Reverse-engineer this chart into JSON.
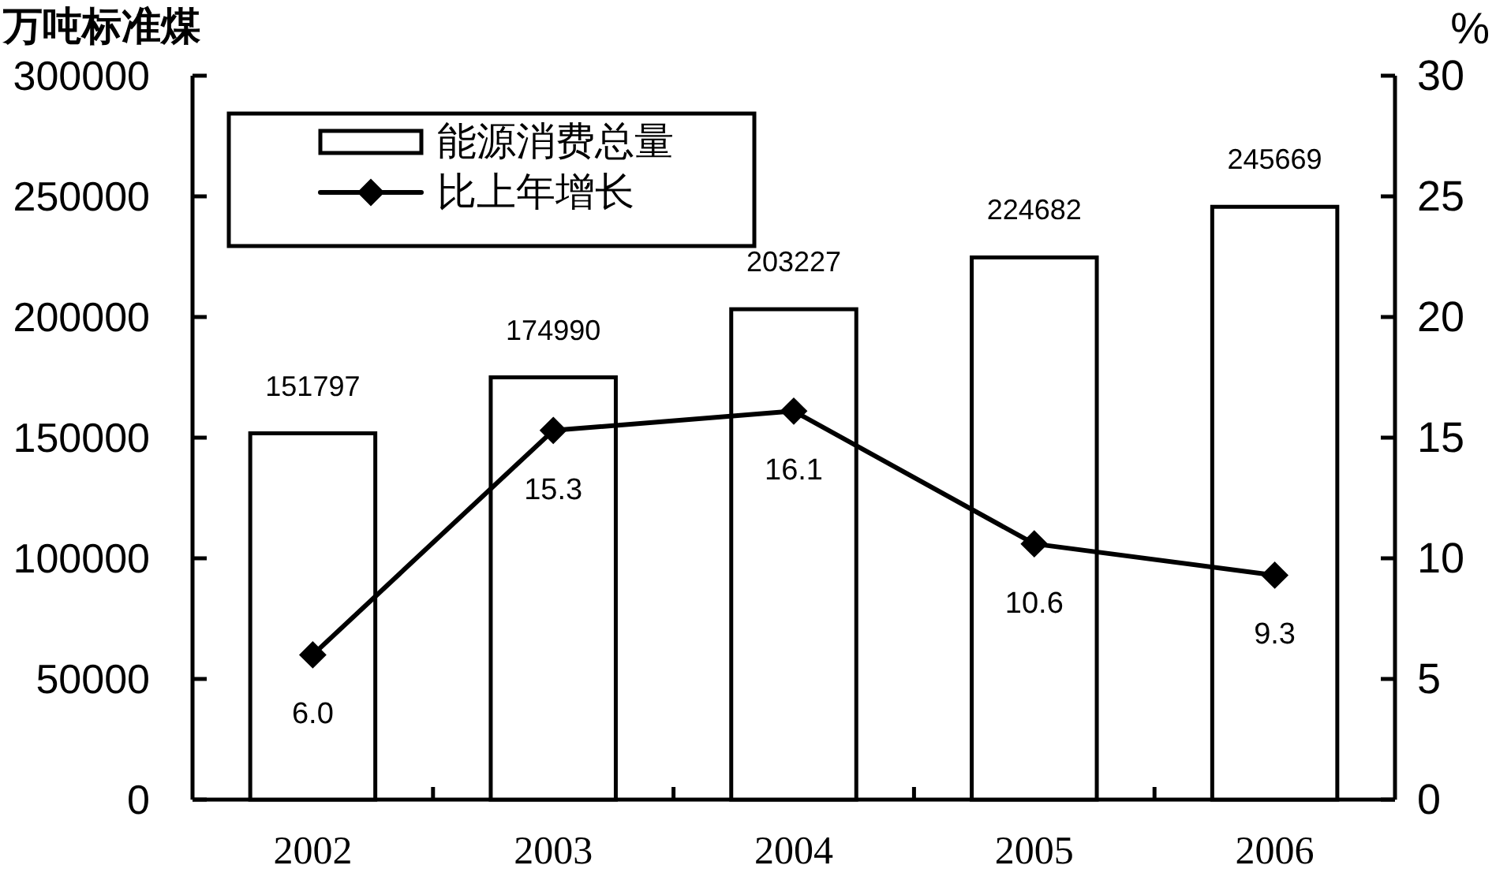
{
  "chart_data": {
    "type": "bar",
    "ylabel": "万吨标准煤",
    "y2label": "%",
    "categories": [
      "2002",
      "2003",
      "2004",
      "2005",
      "2006"
    ],
    "ylim": [
      0,
      300000
    ],
    "yticks": [
      0,
      50000,
      100000,
      150000,
      200000,
      250000,
      300000
    ],
    "y2lim": [
      0,
      30
    ],
    "y2ticks": [
      0,
      5,
      10,
      15,
      20,
      25,
      30
    ],
    "series": [
      {
        "name": "能源消费总量",
        "color": "#ffffff",
        "values": [
          151797,
          174990,
          203227,
          224682,
          245669
        ],
        "value_labels": [
          "151797",
          "174990",
          "203227",
          "224682",
          "245669"
        ]
      },
      {
        "name": "比上年增长",
        "type": "line",
        "axis": "y2",
        "color": "#000000",
        "marker": "diamond",
        "line_style": "solid",
        "values": [
          6.0,
          15.3,
          16.1,
          10.6,
          9.3
        ],
        "value_labels": [
          "6.0",
          "15.3",
          "16.1",
          "10.6",
          "9.3"
        ]
      }
    ],
    "legend": "top left"
  }
}
